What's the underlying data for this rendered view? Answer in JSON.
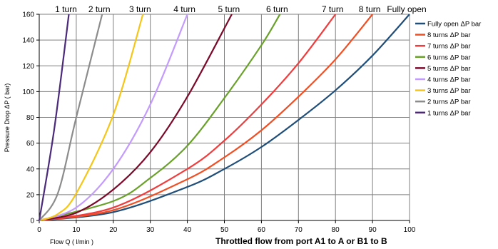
{
  "chart_data": {
    "type": "line",
    "xlabel": "Flow  Q ( l/min )",
    "ylabel": "Pressure Drop ΔP ( bar)",
    "caption": "Throttled flow from port A1 to A or B1 to B",
    "xlim": [
      0,
      100
    ],
    "ylim": [
      0,
      160
    ],
    "x_ticks": [
      "0",
      "10",
      "20",
      "30",
      "40",
      "50",
      "60",
      "70",
      "80",
      "90",
      "100"
    ],
    "y_ticks": [
      "0",
      "20",
      "40",
      "60",
      "80",
      "100",
      "120",
      "140",
      "160"
    ],
    "grid": true,
    "legend_position": "right",
    "series": [
      {
        "name": "Fully open ΔP bar",
        "label": "Fully open",
        "color": "#1f4e79",
        "points": [
          [
            0,
            0
          ],
          [
            20,
            6.5
          ],
          [
            40,
            26
          ],
          [
            50,
            40
          ],
          [
            60,
            57
          ],
          [
            70,
            78
          ],
          [
            80,
            101
          ],
          [
            90,
            128
          ],
          [
            100,
            160
          ]
        ]
      },
      {
        "name": "8 turns ΔP bar",
        "label": "8 turn",
        "color": "#f04e23",
        "points": [
          [
            0,
            0
          ],
          [
            20,
            8
          ],
          [
            40,
            32
          ],
          [
            50,
            49
          ],
          [
            60,
            70
          ],
          [
            70,
            96
          ],
          [
            80,
            125
          ],
          [
            90,
            160
          ]
        ]
      },
      {
        "name": "7 turns ΔP bar",
        "label": "7 turn",
        "color": "#f03c3c",
        "points": [
          [
            0,
            0
          ],
          [
            20,
            10
          ],
          [
            40,
            40
          ],
          [
            50,
            62
          ],
          [
            60,
            90
          ],
          [
            70,
            122
          ],
          [
            80,
            160
          ]
        ]
      },
      {
        "name": "6 turns ΔP bar",
        "label": "6 turn",
        "color": "#6aa12a",
        "points": [
          [
            0,
            0
          ],
          [
            20,
            15
          ],
          [
            30,
            33
          ],
          [
            40,
            58
          ],
          [
            50,
            95
          ],
          [
            60,
            136
          ],
          [
            65,
            160
          ]
        ]
      },
      {
        "name": "5 turns ΔP bar",
        "label": "5 turn",
        "color": "#7b0a2a",
        "points": [
          [
            0,
            0
          ],
          [
            10,
            6
          ],
          [
            20,
            24
          ],
          [
            30,
            53
          ],
          [
            40,
            96
          ],
          [
            52,
            160
          ]
        ]
      },
      {
        "name": "4 turns ΔP bar",
        "label": "4 turn",
        "color": "#c39bff",
        "points": [
          [
            0,
            0
          ],
          [
            10,
            10
          ],
          [
            20,
            40
          ],
          [
            30,
            90
          ],
          [
            40,
            160
          ]
        ]
      },
      {
        "name": "3 turns ΔP bar",
        "label": "3 turn",
        "color": "#f5c518",
        "points": [
          [
            0,
            0
          ],
          [
            5,
            5
          ],
          [
            10,
            21
          ],
          [
            20,
            82
          ],
          [
            28,
            160
          ]
        ]
      },
      {
        "name": "2 turns ΔP bar",
        "label": "2 turn",
        "color": "#8c8c8c",
        "points": [
          [
            0,
            0
          ],
          [
            5,
            21
          ],
          [
            10,
            80
          ],
          [
            17,
            160
          ]
        ]
      },
      {
        "name": "1 turns ΔP bar",
        "label": "1 turn",
        "color": "#4b2a7b",
        "points": [
          [
            0,
            0
          ],
          [
            4,
            70
          ],
          [
            8,
            160
          ]
        ]
      }
    ]
  }
}
